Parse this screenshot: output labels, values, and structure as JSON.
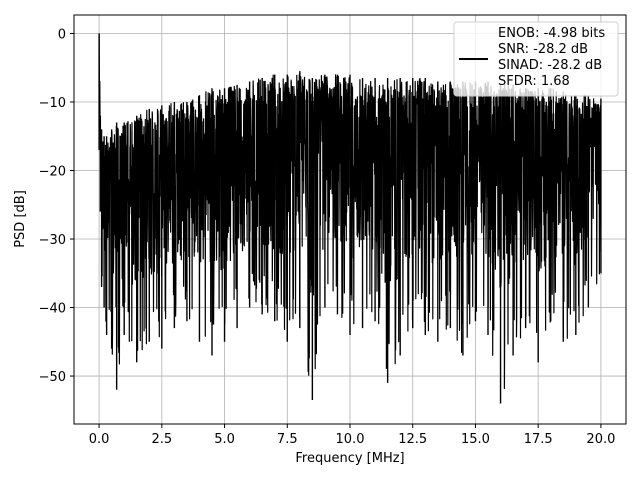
{
  "chart_data": {
    "type": "line",
    "title": "",
    "xlabel": "Frequency [MHz]",
    "ylabel": "PSD [dB]",
    "xlim": [
      -1.0,
      21.0
    ],
    "ylim": [
      -57.0,
      2.7
    ],
    "xticks": [
      0.0,
      2.5,
      5.0,
      7.5,
      10.0,
      12.5,
      15.0,
      17.5,
      20.0
    ],
    "xtick_labels": [
      "0.0",
      "2.5",
      "5.0",
      "7.5",
      "10.0",
      "12.5",
      "15.0",
      "17.5",
      "20.0"
    ],
    "yticks": [
      0,
      -10,
      -20,
      -30,
      -40,
      -50
    ],
    "ytick_labels": [
      "0",
      "−10",
      "−20",
      "−30",
      "−40",
      "−50"
    ],
    "grid": true,
    "legend_position": "top-right",
    "line_color": "#000000",
    "series": [
      {
        "name": "ENOB: -4.98 bits\nSNR: -28.2 dB\nSINAD: -28.2 dB\nSFDR: 1.68",
        "x": [
          0.0,
          0.05,
          0.1,
          0.2,
          0.3,
          0.5,
          0.7,
          1.0,
          1.5,
          2.0,
          2.5,
          3.0,
          3.5,
          4.0,
          4.5,
          5.0,
          5.5,
          6.0,
          6.5,
          7.0,
          7.5,
          8.0,
          8.5,
          9.0,
          9.5,
          10.0,
          10.5,
          11.0,
          11.5,
          12.0,
          12.5,
          13.0,
          13.5,
          14.0,
          14.5,
          15.0,
          15.5,
          16.0,
          16.5,
          17.0,
          17.5,
          18.0,
          18.5,
          19.0,
          19.5,
          20.0
        ],
        "envelope_max": [
          0.0,
          -12.0,
          -14.0,
          -15.0,
          -15.0,
          -14.0,
          -13.0,
          -13.0,
          -12.0,
          -11.0,
          -10.5,
          -10.0,
          -10.0,
          -9.0,
          -8.0,
          -8.0,
          -7.5,
          -7.0,
          -6.5,
          -6.0,
          -6.0,
          -5.5,
          -6.5,
          -6.0,
          -6.0,
          -6.0,
          -6.5,
          -6.5,
          -6.5,
          -6.5,
          -6.5,
          -6.5,
          -7.0,
          -7.0,
          -7.0,
          -7.0,
          -7.0,
          -7.5,
          -7.5,
          -8.0,
          -8.0,
          -8.0,
          -8.5,
          -9.0,
          -9.0,
          -9.5
        ],
        "noise_floor_min": [
          -17.0,
          -26.0,
          -37.0,
          -40.0,
          -44.0,
          -46.0,
          -52.0,
          -44.0,
          -48.0,
          -45.0,
          -46.0,
          -43.0,
          -42.0,
          -45.0,
          -47.0,
          -45.0,
          -43.0,
          -40.0,
          -41.0,
          -42.0,
          -45.0,
          -43.0,
          -53.5,
          -40.0,
          -41.0,
          -44.0,
          -43.0,
          -42.0,
          -51.0,
          -47.0,
          -43.0,
          -44.0,
          -45.0,
          -43.0,
          -47.0,
          -42.0,
          -44.0,
          -54.0,
          -47.0,
          -43.0,
          -48.0,
          -42.0,
          -45.0,
          -44.0,
          -40.0,
          -35.0
        ]
      }
    ]
  }
}
